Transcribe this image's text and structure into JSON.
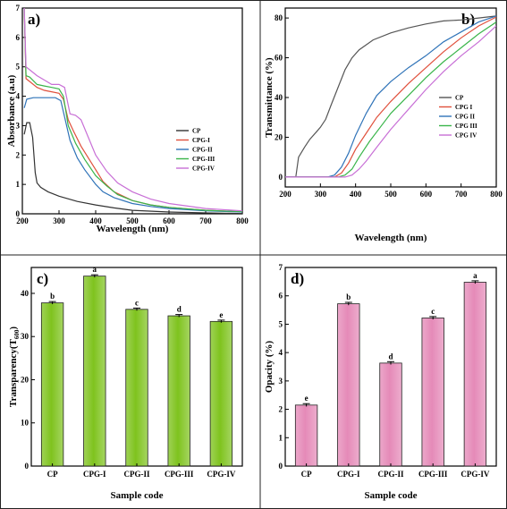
{
  "chart_data": [
    {
      "panel": "a)",
      "type": "line",
      "xlabel": "Wavelength (nm)",
      "ylabel": "Absorbance (a.u)",
      "xlim": [
        200,
        800
      ],
      "ylim": [
        0,
        7
      ],
      "xticks": [
        200,
        300,
        400,
        500,
        600,
        700,
        800
      ],
      "yticks": [
        0,
        1,
        2,
        3,
        4,
        5,
        6,
        7
      ],
      "legend": "right",
      "series": [
        {
          "name": "CP",
          "color": "#333333",
          "points": [
            [
              205,
              2.7
            ],
            [
              212,
              3.1
            ],
            [
              220,
              3.1
            ],
            [
              228,
              2.6
            ],
            [
              235,
              1.4
            ],
            [
              240,
              1.05
            ],
            [
              250,
              0.9
            ],
            [
              270,
              0.75
            ],
            [
              300,
              0.6
            ],
            [
              350,
              0.42
            ],
            [
              400,
              0.3
            ],
            [
              450,
              0.2
            ],
            [
              500,
              0.12
            ],
            [
              600,
              0.06
            ],
            [
              700,
              0.03
            ],
            [
              800,
              0.01
            ]
          ]
        },
        {
          "name": "CPG-I",
          "color": "#e0503c",
          "points": [
            [
              205,
              7.0
            ],
            [
              210,
              4.6
            ],
            [
              220,
              4.5
            ],
            [
              240,
              4.3
            ],
            [
              260,
              4.2
            ],
            [
              280,
              4.15
            ],
            [
              300,
              4.1
            ],
            [
              312,
              3.9
            ],
            [
              325,
              3.2
            ],
            [
              340,
              2.8
            ],
            [
              360,
              2.3
            ],
            [
              380,
              1.9
            ],
            [
              400,
              1.5
            ],
            [
              420,
              1.1
            ],
            [
              450,
              0.75
            ],
            [
              500,
              0.45
            ],
            [
              550,
              0.3
            ],
            [
              600,
              0.22
            ],
            [
              700,
              0.12
            ],
            [
              800,
              0.07
            ]
          ]
        },
        {
          "name": "CPG-II",
          "color": "#2f73b8",
          "points": [
            [
              205,
              3.6
            ],
            [
              212,
              3.9
            ],
            [
              230,
              3.95
            ],
            [
              260,
              3.95
            ],
            [
              290,
              3.95
            ],
            [
              305,
              3.85
            ],
            [
              315,
              3.3
            ],
            [
              330,
              2.5
            ],
            [
              350,
              1.9
            ],
            [
              370,
              1.5
            ],
            [
              400,
              1.0
            ],
            [
              420,
              0.75
            ],
            [
              450,
              0.55
            ],
            [
              500,
              0.35
            ],
            [
              550,
              0.25
            ],
            [
              600,
              0.18
            ],
            [
              700,
              0.1
            ],
            [
              800,
              0.06
            ]
          ]
        },
        {
          "name": "CPG-III",
          "color": "#39b54a",
          "points": [
            [
              205,
              7.0
            ],
            [
              210,
              4.7
            ],
            [
              220,
              4.65
            ],
            [
              240,
              4.4
            ],
            [
              260,
              4.35
            ],
            [
              280,
              4.3
            ],
            [
              300,
              4.25
            ],
            [
              312,
              4.0
            ],
            [
              325,
              3.0
            ],
            [
              345,
              2.4
            ],
            [
              370,
              1.85
            ],
            [
              400,
              1.3
            ],
            [
              430,
              0.95
            ],
            [
              460,
              0.65
            ],
            [
              500,
              0.45
            ],
            [
              550,
              0.3
            ],
            [
              600,
              0.22
            ],
            [
              700,
              0.12
            ],
            [
              800,
              0.07
            ]
          ]
        },
        {
          "name": "CPG-IV",
          "color": "#c86fd6",
          "points": [
            [
              205,
              7.0
            ],
            [
              210,
              5.0
            ],
            [
              220,
              4.9
            ],
            [
              240,
              4.7
            ],
            [
              260,
              4.55
            ],
            [
              280,
              4.4
            ],
            [
              300,
              4.4
            ],
            [
              315,
              4.3
            ],
            [
              330,
              3.4
            ],
            [
              345,
              3.35
            ],
            [
              360,
              3.2
            ],
            [
              380,
              2.6
            ],
            [
              400,
              2.0
            ],
            [
              430,
              1.45
            ],
            [
              460,
              1.05
            ],
            [
              500,
              0.75
            ],
            [
              550,
              0.5
            ],
            [
              600,
              0.35
            ],
            [
              700,
              0.18
            ],
            [
              800,
              0.1
            ]
          ]
        }
      ]
    },
    {
      "panel": "b)",
      "type": "line",
      "xlabel": "Wavelength (nm)",
      "ylabel": "Transmittance (%)",
      "xlim": [
        200,
        800
      ],
      "ylim": [
        -5,
        85
      ],
      "xticks": [
        200,
        300,
        400,
        500,
        600,
        700,
        800
      ],
      "yticks": [
        0,
        20,
        40,
        60,
        80
      ],
      "legend": "bottom-right",
      "series": [
        {
          "name": "CP",
          "color": "#555555",
          "points": [
            [
              200,
              0
            ],
            [
              230,
              0
            ],
            [
              238,
              10
            ],
            [
              255,
              15
            ],
            [
              270,
              19
            ],
            [
              290,
              23
            ],
            [
              300,
              25
            ],
            [
              315,
              29
            ],
            [
              330,
              36
            ],
            [
              350,
              45
            ],
            [
              370,
              54
            ],
            [
              390,
              60
            ],
            [
              410,
              64
            ],
            [
              450,
              69
            ],
            [
              500,
              72.5
            ],
            [
              550,
              75
            ],
            [
              600,
              77
            ],
            [
              650,
              78.5
            ],
            [
              700,
              79
            ],
            [
              750,
              80
            ],
            [
              800,
              81
            ]
          ]
        },
        {
          "name": "CPG I",
          "color": "#e0503c",
          "points": [
            [
              200,
              0
            ],
            [
              340,
              0
            ],
            [
              360,
              2
            ],
            [
              380,
              7
            ],
            [
              400,
              14
            ],
            [
              430,
              22
            ],
            [
              460,
              30
            ],
            [
              500,
              38
            ],
            [
              550,
              47
            ],
            [
              600,
              55
            ],
            [
              650,
              63
            ],
            [
              700,
              70
            ],
            [
              750,
              76
            ],
            [
              800,
              80.5
            ]
          ]
        },
        {
          "name": "CPG II",
          "color": "#2f73b8",
          "points": [
            [
              200,
              0
            ],
            [
              320,
              0
            ],
            [
              340,
              1
            ],
            [
              360,
              5
            ],
            [
              380,
              12
            ],
            [
              400,
              21
            ],
            [
              430,
              32
            ],
            [
              460,
              41
            ],
            [
              500,
              48
            ],
            [
              550,
              55
            ],
            [
              600,
              61
            ],
            [
              650,
              68
            ],
            [
              700,
              73
            ],
            [
              750,
              78
            ],
            [
              800,
              81
            ]
          ]
        },
        {
          "name": "CPG III",
          "color": "#39b54a",
          "points": [
            [
              200,
              0
            ],
            [
              350,
              0
            ],
            [
              370,
              1
            ],
            [
              390,
              4
            ],
            [
              410,
              10
            ],
            [
              440,
              18
            ],
            [
              470,
              25
            ],
            [
              500,
              32
            ],
            [
              550,
              41
            ],
            [
              600,
              50
            ],
            [
              650,
              58
            ],
            [
              700,
              65
            ],
            [
              750,
              72
            ],
            [
              800,
              78
            ]
          ]
        },
        {
          "name": "CPG IV",
          "color": "#c86fd6",
          "points": [
            [
              200,
              0
            ],
            [
              370,
              0
            ],
            [
              390,
              1
            ],
            [
              410,
              4
            ],
            [
              430,
              8
            ],
            [
              460,
              15
            ],
            [
              500,
              24
            ],
            [
              550,
              34
            ],
            [
              600,
              44
            ],
            [
              650,
              53
            ],
            [
              700,
              61
            ],
            [
              750,
              68
            ],
            [
              800,
              76
            ]
          ]
        }
      ]
    },
    {
      "panel": "c)",
      "type": "bar",
      "xlabel": "Sample code",
      "ylabel": "Transparency(T",
      "ylabel_sub": "600",
      "ylabel_end": ")",
      "categories": [
        "CP",
        "CPG-I",
        "CPG-II",
        "CPG-III",
        "CPG-IV"
      ],
      "values": [
        37.8,
        44.0,
        36.3,
        34.8,
        33.5
      ],
      "errors": [
        0.3,
        0.3,
        0.3,
        0.3,
        0.3
      ],
      "letters": [
        "b",
        "a",
        "c",
        "d",
        "e"
      ],
      "ylim": [
        0,
        46
      ],
      "yticks": [
        0,
        10,
        20,
        30,
        40
      ],
      "color": "#7fc31e"
    },
    {
      "panel": "d)",
      "type": "bar",
      "xlabel": "Sample code",
      "ylabel": "Opacity (%)",
      "categories": [
        "CP",
        "CPG-I",
        "CPG-II",
        "CPG-III",
        "CPG-IV"
      ],
      "values": [
        2.15,
        5.72,
        3.63,
        5.22,
        6.48
      ],
      "errors": [
        0.05,
        0.05,
        0.05,
        0.05,
        0.05
      ],
      "letters": [
        "e",
        "b",
        "d",
        "c",
        "a"
      ],
      "ylim": [
        0,
        7
      ],
      "yticks": [
        0,
        1,
        2,
        3,
        4,
        5,
        6,
        7
      ],
      "color": "#e58ab8"
    }
  ]
}
